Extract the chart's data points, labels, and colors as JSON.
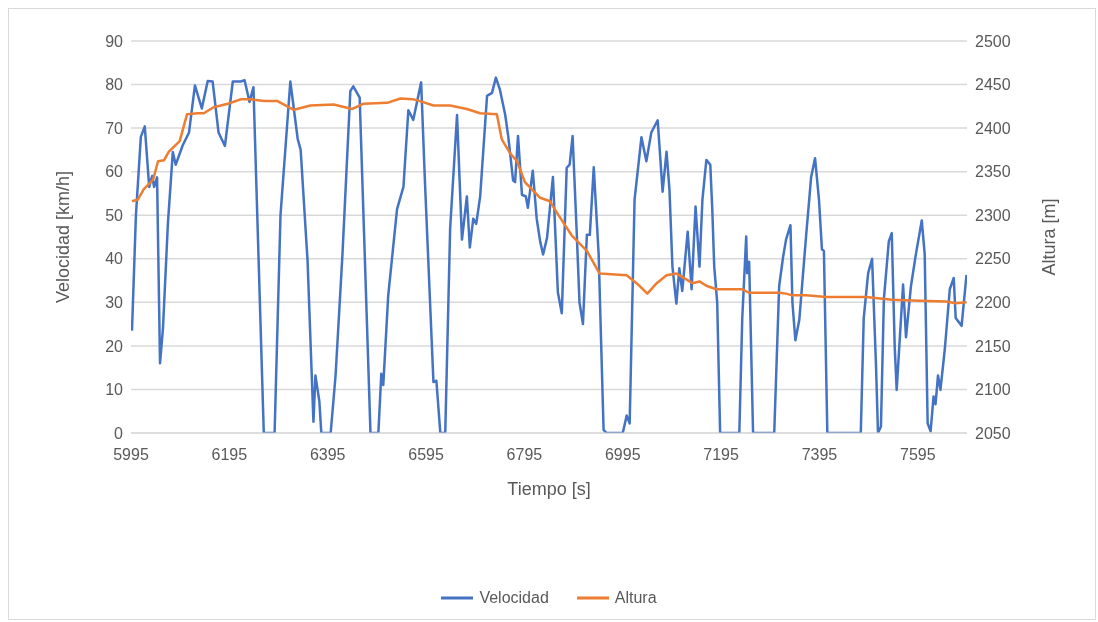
{
  "chart_data": {
    "type": "line",
    "xlabel": "Tiempo [s]",
    "ylabel": "Velocidad [km/h]",
    "y2label": "Altura [m]",
    "xlim": [
      5995,
      7695
    ],
    "xticks": [
      5995,
      6195,
      6395,
      6595,
      6795,
      6995,
      7195,
      7395,
      7595
    ],
    "ylim": [
      0,
      90
    ],
    "yticks": [
      0,
      10,
      20,
      30,
      40,
      50,
      60,
      70,
      80,
      90
    ],
    "y2lim": [
      2050,
      2500
    ],
    "y2ticks": [
      2050,
      2100,
      2150,
      2200,
      2250,
      2300,
      2350,
      2400,
      2450,
      2500
    ],
    "grid": "y",
    "legend": "bottom",
    "marker": "none",
    "line_style": "solid",
    "series": [
      {
        "name": "Velocidad",
        "color": "#4472c4",
        "x": [
          5997,
          6005,
          6015,
          6023,
          6032,
          6038,
          6042,
          6048,
          6054,
          6060,
          6070,
          6080,
          6086,
          6100,
          6113,
          6125,
          6139,
          6151,
          6161,
          6173,
          6186,
          6202,
          6218,
          6226,
          6236,
          6244,
          6265,
          6287,
          6299,
          6319,
          6334,
          6340,
          6354,
          6366,
          6370,
          6378,
          6382,
          6401,
          6411,
          6425,
          6441,
          6447,
          6460,
          6482,
          6498,
          6504,
          6508,
          6518,
          6536,
          6549,
          6559,
          6569,
          6585,
          6593,
          6610,
          6616,
          6624,
          6634,
          6644,
          6658,
          6668,
          6678,
          6684,
          6691,
          6697,
          6705,
          6719,
          6729,
          6737,
          6745,
          6756,
          6762,
          6772,
          6776,
          6782,
          6790,
          6798,
          6802,
          6812,
          6820,
          6827,
          6833,
          6841,
          6853,
          6863,
          6871,
          6881,
          6887,
          6893,
          6901,
          6907,
          6914,
          6922,
          6928,
          6936,
          6946,
          6956,
          6962,
          6995,
          7003,
          7009,
          7019,
          7033,
          7043,
          7053,
          7066,
          7076,
          7084,
          7090,
          7096,
          7104,
          7110,
          7116,
          7127,
          7135,
          7143,
          7151,
          7157,
          7165,
          7173,
          7177,
          7181,
          7187,
          7193,
          7232,
          7238,
          7246,
          7248,
          7252,
          7260,
          7303,
          7313,
          7321,
          7327,
          7336,
          7340,
          7346,
          7354,
          7368,
          7378,
          7386,
          7394,
          7400,
          7404,
          7411,
          7479,
          7485,
          7494,
          7502,
          7510,
          7514,
          7520,
          7526,
          7536,
          7542,
          7548,
          7552,
          7565,
          7571,
          7581,
          7591,
          7603,
          7609,
          7615,
          7621,
          7627,
          7631,
          7636,
          7641,
          7650,
          7660,
          7668,
          7672,
          7684,
          7694
        ],
        "values": [
          23.5,
          50,
          68,
          70.4,
          56.5,
          59,
          56.5,
          58.7,
          16,
          24,
          48,
          64.5,
          61.6,
          66,
          69,
          79.8,
          74.5,
          80.8,
          80.7,
          69,
          65.9,
          80.7,
          80.7,
          81,
          76,
          79.4,
          0,
          0,
          50,
          80.7,
          67.5,
          65,
          39.6,
          2.6,
          13.2,
          7.3,
          0,
          0,
          13.2,
          41,
          78.5,
          79.6,
          77,
          0,
          0,
          13.6,
          11,
          31.5,
          51.4,
          56.5,
          74.1,
          71.9,
          80.5,
          57,
          11.7,
          12,
          0,
          0,
          47,
          73,
          44.4,
          54.3,
          42.6,
          49.2,
          48,
          54.3,
          77.4,
          78.1,
          81.6,
          78.9,
          73,
          68.2,
          58,
          57.6,
          68.2,
          54.7,
          54.3,
          51.7,
          60.2,
          49.2,
          44,
          41,
          44.8,
          58.8,
          32.3,
          27.5,
          60.9,
          61.6,
          68.2,
          47,
          30,
          25,
          45.5,
          45.5,
          61,
          41,
          0.7,
          0,
          0,
          4,
          2.2,
          53.6,
          67.9,
          62.4,
          69,
          71.8,
          55.4,
          64.6,
          55.8,
          38.2,
          29.7,
          37.8,
          32.6,
          46.2,
          33,
          52,
          38.2,
          53.6,
          62.7,
          61.6,
          51.4,
          38.2,
          30,
          0,
          0,
          26.4,
          45.1,
          36.7,
          39.3,
          0,
          0,
          33.7,
          40.4,
          44.4,
          47.7,
          30,
          21.3,
          26,
          45.5,
          58.7,
          63.1,
          53.6,
          42.2,
          41.8,
          0,
          0,
          26.4,
          36.7,
          40,
          15.4,
          0,
          1.5,
          30.8,
          44,
          45.9,
          19.8,
          9.9,
          34.1,
          22,
          33.7,
          41,
          48.8,
          41,
          2.2,
          0.4,
          8.4,
          6.6,
          13.2,
          9.9,
          19.4,
          33,
          35.6,
          26.4,
          24.6,
          36.3
        ]
      },
      {
        "name": "Altura",
        "color": "#ed7d31",
        "axis": "y2",
        "x": [
          5997,
          6009,
          6021,
          6040,
          6050,
          6062,
          6072,
          6094,
          6109,
          6131,
          6143,
          6163,
          6192,
          6218,
          6238,
          6265,
          6293,
          6326,
          6360,
          6407,
          6445,
          6468,
          6516,
          6543,
          6569,
          6583,
          6610,
          6644,
          6678,
          6705,
          6739,
          6749,
          6766,
          6780,
          6796,
          6827,
          6847,
          6861,
          6891,
          6922,
          6948,
          7003,
          7029,
          7045,
          7064,
          7084,
          7104,
          7137,
          7151,
          7165,
          7185,
          7238,
          7252,
          7313,
          7327,
          7340,
          7368,
          7409,
          7490,
          7542,
          7583,
          7652,
          7672,
          7694
        ],
        "values": [
          2316,
          2318,
          2330,
          2341,
          2362,
          2363,
          2373,
          2385,
          2416,
          2417,
          2417,
          2424,
          2428,
          2433,
          2433,
          2431,
          2431,
          2421,
          2426,
          2427,
          2422,
          2428,
          2429,
          2434,
          2433,
          2431,
          2426,
          2426,
          2422,
          2417,
          2416,
          2387,
          2371,
          2362,
          2338,
          2320,
          2316,
          2303,
          2277,
          2259,
          2233,
          2231,
          2219,
          2210,
          2222,
          2231,
          2233,
          2222,
          2224,
          2219,
          2215,
          2215,
          2211,
          2211,
          2210,
          2208,
          2208,
          2206,
          2206,
          2203,
          2202,
          2201,
          2199,
          2200
        ]
      }
    ]
  }
}
